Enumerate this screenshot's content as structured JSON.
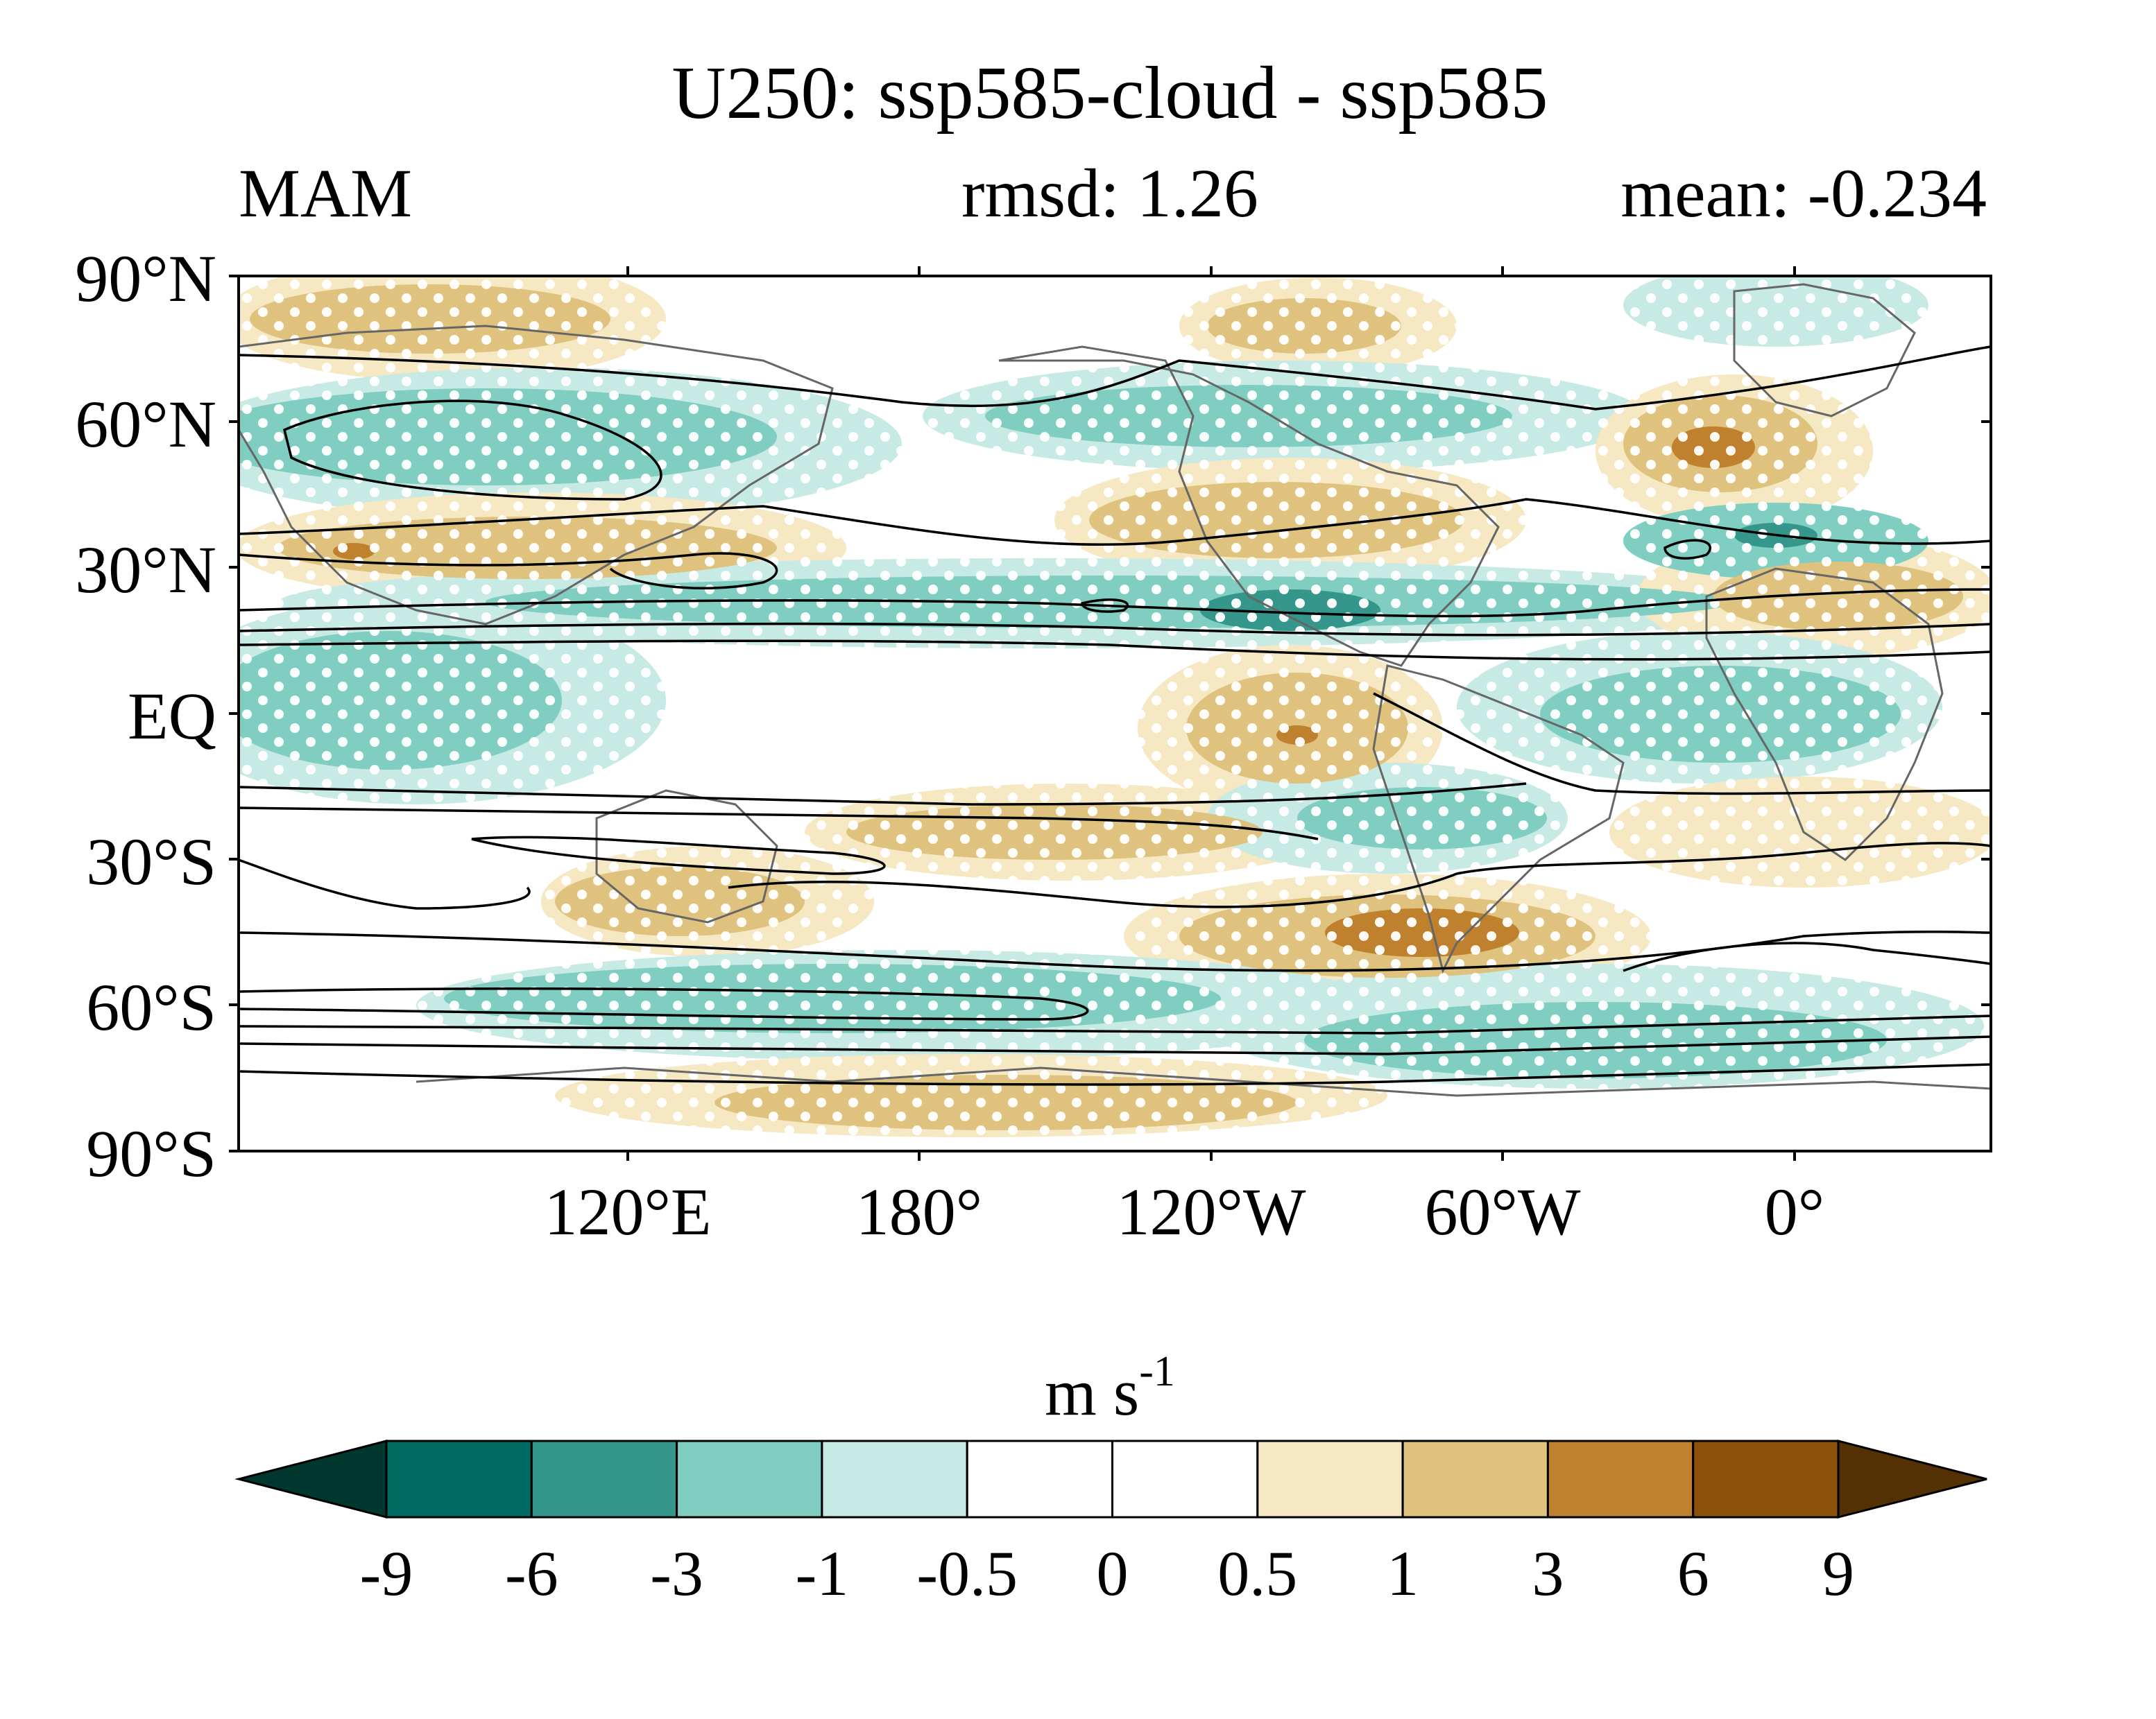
{
  "title": "U250: ssp585-cloud - ssp585",
  "subtitle_left": "MAM",
  "subtitle_center": "rmsd: 1.26",
  "subtitle_right": "mean: -0.234",
  "map": {
    "lat_ticks": [
      "90°N",
      "60°N",
      "30°N",
      "EQ",
      "30°S",
      "60°S",
      "90°S"
    ],
    "lon_ticks": [
      "120°E",
      "180°",
      "120°W",
      "60°W",
      "0°"
    ],
    "land_outline_color": "#666666",
    "contour_color": "#000000",
    "stipple_color": "#ffffff"
  },
  "colorbar": {
    "unit_base": "m s",
    "unit_exp": "-1",
    "tick_labels": [
      "-9",
      "-6",
      "-3",
      "-1",
      "-0.5",
      "0",
      "0.5",
      "1",
      "3",
      "6",
      "9"
    ],
    "colors": [
      "#00382f",
      "#006b60",
      "#35968c",
      "#80cdc1",
      "#c7eae5",
      "#ffffff",
      "#ffffff",
      "#f6e8c3",
      "#dfc27d",
      "#bf812d",
      "#8c510a",
      "#543005"
    ]
  }
}
